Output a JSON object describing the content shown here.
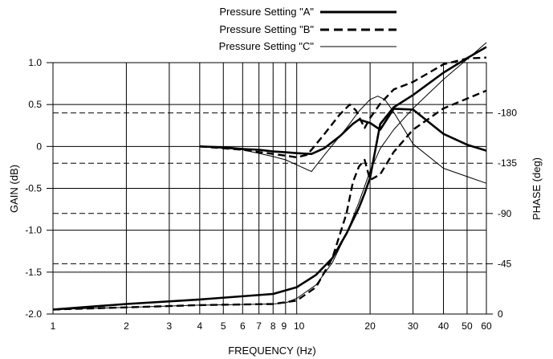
{
  "chart_data": {
    "type": "line",
    "xlabel": "FREQUENCY (Hz)",
    "ylabel": "GAIN (dB)",
    "y2label": "PHASE (deg)",
    "xscale": "log",
    "xlim": [
      1,
      60
    ],
    "ylim": [
      -2.0,
      1.0
    ],
    "y2lim": [
      0,
      -225
    ],
    "grid": true,
    "legend_position": "top-center",
    "x_ticks": [
      "1",
      "2",
      "3",
      "4",
      "5",
      "6",
      "7",
      "8",
      "9",
      "10",
      "20",
      "30",
      "40",
      "50",
      "60"
    ],
    "y_ticks": [
      "1.0",
      "0.5",
      "0",
      "-0.5",
      "-1.0",
      "-1.5",
      "-2.0"
    ],
    "y2_ticks": [
      "-180",
      "-135",
      "-90",
      "-45",
      "0"
    ],
    "series": [
      {
        "name": "Pressure Setting \"A\"",
        "style": "solid-thick",
        "gain": {
          "x": [
            4,
            5,
            6,
            7,
            8,
            9,
            10,
            11.5,
            13,
            15,
            17,
            18,
            20,
            22,
            25,
            30,
            40,
            50,
            60
          ],
          "y": [
            0,
            -0.01,
            -0.03,
            -0.04,
            -0.06,
            -0.07,
            -0.08,
            -0.09,
            -0.02,
            0.12,
            0.27,
            0.32,
            0.28,
            0.2,
            0.45,
            0.44,
            0.15,
            0.02,
            -0.05
          ]
        },
        "phase": {
          "x": [
            1,
            2,
            4,
            8,
            10,
            12,
            14,
            16,
            18,
            19,
            20,
            22,
            25,
            30,
            40,
            50,
            60
          ],
          "y": [
            -4,
            -9,
            -13,
            -18,
            -24,
            -35,
            -50,
            -72,
            -95,
            -108,
            -122,
            -170,
            -185,
            -196,
            -216,
            -229,
            -239
          ]
        }
      },
      {
        "name": "Pressure Setting \"B\"",
        "style": "dashed-thick",
        "gain": {
          "x": [
            4,
            6,
            8,
            9,
            10,
            11,
            11.5,
            13,
            15,
            16.5,
            17.5,
            19,
            20,
            22,
            25,
            30,
            40,
            50,
            60
          ],
          "y": [
            0,
            -0.04,
            -0.09,
            -0.11,
            -0.13,
            -0.1,
            -0.04,
            0.15,
            0.38,
            0.5,
            0.43,
            0.22,
            0.34,
            0.51,
            0.68,
            0.77,
            0.98,
            1.05,
            1.06
          ]
        },
        "phase": {
          "x": [
            1,
            2,
            4,
            8,
            10,
            12,
            14,
            16,
            17,
            18,
            19,
            20,
            22,
            25,
            30,
            40,
            60
          ],
          "y": [
            -4,
            -6,
            -8,
            -9,
            -12,
            -24,
            -50,
            -90,
            -118,
            -132,
            -138,
            -120,
            -125,
            -145,
            -165,
            -184,
            -200
          ]
        }
      },
      {
        "name": "Pressure Setting \"C\"",
        "style": "solid-thin",
        "gain": {
          "x": [
            4,
            6,
            8,
            9,
            10,
            11.5,
            13,
            16,
            18,
            20,
            21.5,
            23,
            25,
            30,
            40,
            50,
            60
          ],
          "y": [
            0,
            -0.04,
            -0.12,
            -0.16,
            -0.22,
            -0.3,
            -0.1,
            0.22,
            0.42,
            0.56,
            0.6,
            0.56,
            0.41,
            0.03,
            -0.26,
            -0.36,
            -0.44
          ]
        },
        "phase": {
          "x": [
            1,
            2,
            4,
            8,
            9,
            10,
            12,
            14,
            16,
            18,
            20,
            22,
            25,
            30,
            40,
            50,
            60
          ],
          "y": [
            -4,
            -6,
            -8,
            -9,
            -10,
            -14,
            -26,
            -46,
            -72,
            -100,
            -128,
            -148,
            -165,
            -184,
            -210,
            -228,
            -243
          ]
        }
      }
    ]
  }
}
